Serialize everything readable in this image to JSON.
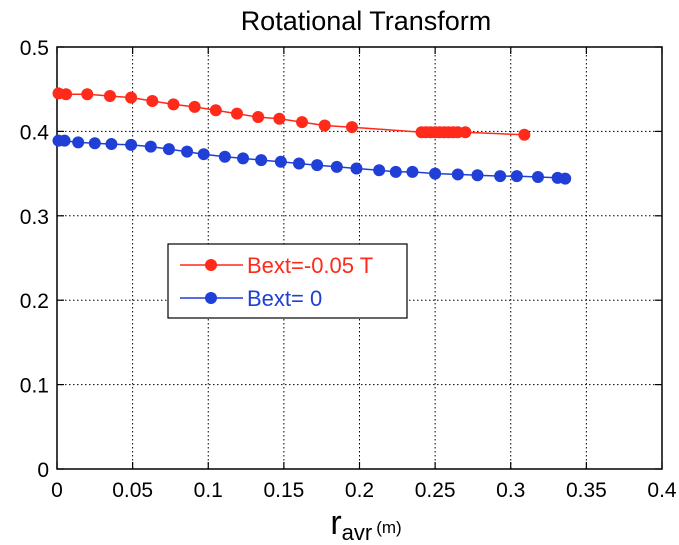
{
  "chart_data": {
    "type": "line",
    "title": "Rotational Transform",
    "xlabel": {
      "main": "r",
      "subscript": "avr",
      "unit": "(m)"
    },
    "ylabel": "",
    "xlim": [
      0,
      0.4
    ],
    "ylim": [
      0,
      0.5
    ],
    "x_ticks": [
      "0",
      "0.05",
      "0.1",
      "0.15",
      "0.2",
      "0.25",
      "0.3",
      "0.35",
      "0.4"
    ],
    "y_ticks": [
      "0",
      "0.1",
      "0.2",
      "0.3",
      "0.4",
      "0.5"
    ],
    "x_tick_values": [
      0,
      0.05,
      0.1,
      0.15,
      0.2,
      0.25,
      0.3,
      0.35,
      0.4
    ],
    "y_tick_values": [
      0,
      0.1,
      0.2,
      0.3,
      0.4,
      0.5
    ],
    "grid": true,
    "legend_position": "center-left",
    "series": [
      {
        "name": "Bext=-0.05 T",
        "color": "#ff2a1a",
        "x": [
          0.001,
          0.006,
          0.02,
          0.035,
          0.049,
          0.063,
          0.077,
          0.091,
          0.105,
          0.119,
          0.133,
          0.147,
          0.162,
          0.177,
          0.195,
          0.241,
          0.244,
          0.247,
          0.25,
          0.253,
          0.256,
          0.259,
          0.262,
          0.265,
          0.27,
          0.309
        ],
        "y": [
          0.445,
          0.444,
          0.444,
          0.442,
          0.44,
          0.436,
          0.432,
          0.429,
          0.425,
          0.421,
          0.417,
          0.415,
          0.411,
          0.407,
          0.405,
          0.399,
          0.399,
          0.399,
          0.399,
          0.399,
          0.399,
          0.399,
          0.399,
          0.399,
          0.399,
          0.396
        ]
      },
      {
        "name": "Bext= 0",
        "color": "#1f3fd6",
        "x": [
          0.001,
          0.005,
          0.014,
          0.025,
          0.036,
          0.049,
          0.062,
          0.074,
          0.086,
          0.097,
          0.111,
          0.123,
          0.135,
          0.148,
          0.16,
          0.172,
          0.185,
          0.198,
          0.213,
          0.224,
          0.235,
          0.25,
          0.265,
          0.278,
          0.293,
          0.304,
          0.318,
          0.331,
          0.336
        ],
        "y": [
          0.389,
          0.389,
          0.387,
          0.386,
          0.385,
          0.384,
          0.382,
          0.379,
          0.376,
          0.373,
          0.37,
          0.368,
          0.366,
          0.364,
          0.362,
          0.36,
          0.358,
          0.356,
          0.354,
          0.352,
          0.352,
          0.35,
          0.349,
          0.348,
          0.347,
          0.347,
          0.346,
          0.345,
          0.344
        ]
      }
    ]
  }
}
